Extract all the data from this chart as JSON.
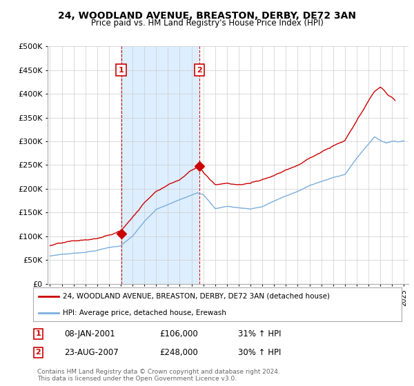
{
  "title": "24, WOODLAND AVENUE, BREASTON, DERBY, DE72 3AN",
  "subtitle": "Price paid vs. HM Land Registry's House Price Index (HPI)",
  "ylabel_ticks": [
    "£0",
    "£50K",
    "£100K",
    "£150K",
    "£200K",
    "£250K",
    "£300K",
    "£350K",
    "£400K",
    "£450K",
    "£500K"
  ],
  "ytick_values": [
    0,
    50000,
    100000,
    150000,
    200000,
    250000,
    300000,
    350000,
    400000,
    450000,
    500000
  ],
  "ylim": [
    0,
    500000
  ],
  "xlim_start": 1994.8,
  "xlim_end": 2025.4,
  "red_color": "#cc0000",
  "blue_color": "#7aaddb",
  "shade_color": "#ddeeff",
  "annotation_color": "#cc0000",
  "sale1_x": 2001.03,
  "sale1_y": 106000,
  "sale1_label": "1",
  "sale2_x": 2007.65,
  "sale2_y": 248000,
  "sale2_label": "2",
  "legend_line1": "24, WOODLAND AVENUE, BREASTON, DERBY, DE72 3AN (detached house)",
  "legend_line2": "HPI: Average price, detached house, Erewash",
  "table_rows": [
    {
      "num": "1",
      "date": "08-JAN-2001",
      "price": "£106,000",
      "hpi": "31% ↑ HPI"
    },
    {
      "num": "2",
      "date": "23-AUG-2007",
      "price": "£248,000",
      "hpi": "30% ↑ HPI"
    }
  ],
  "footer": "Contains HM Land Registry data © Crown copyright and database right 2024.\nThis data is licensed under the Open Government Licence v3.0.",
  "background_color": "#ffffff",
  "grid_color": "#cccccc"
}
